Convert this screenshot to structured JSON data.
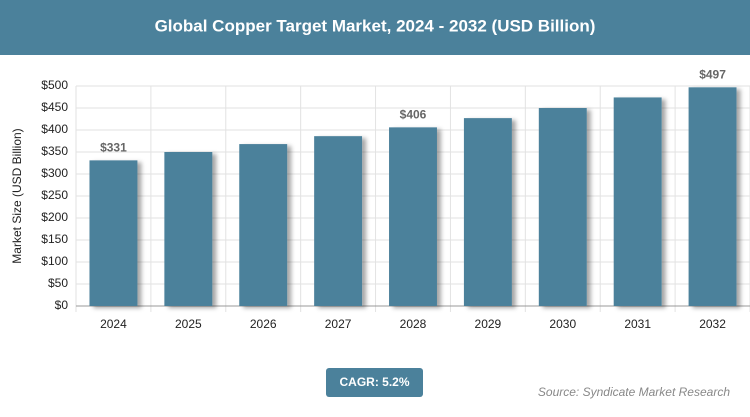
{
  "chart_data": {
    "type": "bar",
    "title": "Global Copper Target Market, 2024 - 2032 (USD Billion)",
    "y_label": "Market Size (USD Billion)",
    "categories": [
      "2024",
      "2025",
      "2026",
      "2027",
      "2028",
      "2029",
      "2030",
      "2031",
      "2032"
    ],
    "values": [
      331,
      350,
      368,
      386,
      406,
      427,
      450,
      474,
      497
    ],
    "value_labels": [
      "$331",
      null,
      null,
      null,
      "$406",
      null,
      null,
      null,
      "$497"
    ],
    "color": "#4b819b",
    "ylim": [
      0,
      500
    ],
    "yticks": [
      {
        "value": 0,
        "label": "$0"
      },
      {
        "value": 50,
        "label": "$50"
      },
      {
        "value": 100,
        "label": "$100"
      },
      {
        "value": 150,
        "label": "$150"
      },
      {
        "value": 200,
        "label": "$200"
      },
      {
        "value": 250,
        "label": "$250"
      },
      {
        "value": 300,
        "label": "$300"
      },
      {
        "value": 350,
        "label": "$350"
      },
      {
        "value": 400,
        "label": "$400"
      },
      {
        "value": 450,
        "label": "$450"
      },
      {
        "value": 500,
        "label": "$500"
      }
    ],
    "grid": true,
    "cagr_label": "CAGR: 5.2%",
    "source": "Source: Syndicate Market Research"
  }
}
